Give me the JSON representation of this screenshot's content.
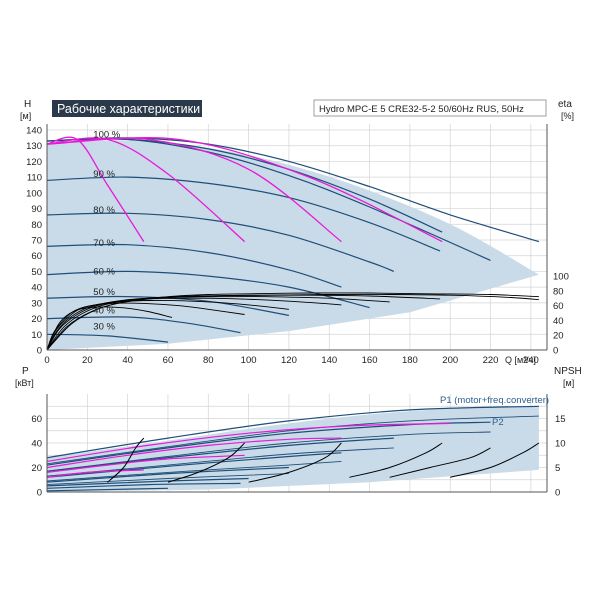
{
  "colors": {
    "envelope": "#c9dbe8",
    "curve_blue": "#1f4e79",
    "curve_magenta": "#e81ad8",
    "curve_black": "#000000",
    "grid": "#d4d4d4",
    "title_bg": "#2b3a4a",
    "title_text": "#ffffff",
    "axis_text": "#222222",
    "label_blue": "#2f5f8f"
  },
  "chart_data": [
    {
      "id": "qh",
      "type": "line",
      "title": "Рабочие характеристики",
      "product_label": "Hydro MPC-E 5 CRE32-5-2 50/60Hz RUS, 50Hz",
      "ylabel": "H",
      "yunit": "[м]",
      "y2label": "eta",
      "y2unit": "[%]",
      "xlabel": "Q [м³/ч]",
      "xlim": [
        0,
        248
      ],
      "ylim": [
        0,
        150
      ],
      "y2lim": [
        0,
        100
      ],
      "xticks": [
        0,
        20,
        40,
        60,
        80,
        100,
        120,
        140,
        160,
        180,
        200,
        220,
        240
      ],
      "yticks": [
        0,
        10,
        20,
        30,
        40,
        50,
        60,
        70,
        80,
        90,
        100,
        110,
        120,
        130,
        140
      ],
      "y2ticks": [
        0,
        20,
        40,
        60,
        80,
        100
      ],
      "grid": true,
      "speed_labels": [
        {
          "text": "100 %",
          "q": 18,
          "h": 137
        },
        {
          "text": "90 %",
          "q": 18,
          "h": 112
        },
        {
          "text": "80 %",
          "q": 18,
          "h": 89
        },
        {
          "text": "70 %",
          "q": 18,
          "h": 68
        },
        {
          "text": "60 %",
          "q": 18,
          "h": 50
        },
        {
          "text": "50 %",
          "q": 18,
          "h": 37
        },
        {
          "text": "40 %",
          "q": 18,
          "h": 25
        },
        {
          "text": "30 %",
          "q": 18,
          "h": 15
        }
      ],
      "envelope_top": [
        [
          0,
          132
        ],
        [
          50,
          133
        ],
        [
          100,
          124
        ],
        [
          150,
          106
        ],
        [
          200,
          80
        ],
        [
          244,
          48
        ]
      ],
      "envelope_bottom": [
        [
          0,
          0
        ],
        [
          60,
          4
        ],
        [
          120,
          12
        ],
        [
          180,
          24
        ],
        [
          244,
          48
        ]
      ],
      "qh_curves": [
        {
          "speed": 100,
          "q": [
            0,
            40,
            80,
            120,
            160,
            200,
            244
          ],
          "h": [
            133,
            135,
            131,
            120,
            104,
            86,
            69
          ]
        },
        {
          "speed": 100,
          "q": [
            0,
            40,
            80,
            120,
            160,
            196
          ],
          "h": [
            133,
            134,
            128,
            115,
            96,
            75
          ]
        },
        {
          "speed": 100,
          "q": [
            0,
            40,
            80,
            120,
            160,
            220
          ],
          "h": [
            133,
            134,
            126,
            111,
            91,
            57
          ]
        },
        {
          "speed": 90,
          "q": [
            0,
            40,
            80,
            120,
            160,
            195
          ],
          "h": [
            108,
            110,
            106,
            97,
            81,
            63
          ]
        },
        {
          "speed": 80,
          "q": [
            0,
            40,
            80,
            120,
            160,
            172
          ],
          "h": [
            86,
            87,
            83,
            73,
            56,
            50
          ]
        },
        {
          "speed": 70,
          "q": [
            0,
            40,
            80,
            120,
            146
          ],
          "h": [
            66,
            67,
            62,
            51,
            40
          ]
        },
        {
          "speed": 60,
          "q": [
            0,
            40,
            80,
            120,
            160
          ],
          "h": [
            48,
            50,
            47,
            40,
            27
          ]
        },
        {
          "speed": 50,
          "q": [
            0,
            40,
            80,
            120
          ],
          "h": [
            33,
            34,
            31,
            22
          ]
        },
        {
          "speed": 40,
          "q": [
            0,
            40,
            70,
            96
          ],
          "h": [
            20,
            21,
            17,
            11
          ]
        },
        {
          "speed": 30,
          "q": [
            0,
            30,
            60
          ],
          "h": [
            10,
            9,
            5
          ]
        }
      ],
      "magenta_curves": [
        {
          "q": [
            0,
            15,
            30,
            48
          ],
          "h": [
            131,
            134,
            105,
            69
          ]
        },
        {
          "q": [
            0,
            30,
            60,
            98
          ],
          "h": [
            131,
            134,
            112,
            69
          ]
        },
        {
          "q": [
            0,
            50,
            100,
            146
          ],
          "h": [
            131,
            134,
            115,
            69
          ]
        },
        {
          "q": [
            0,
            65,
            130,
            196
          ],
          "h": [
            131,
            134,
            110,
            69
          ]
        }
      ],
      "eta_curves": [
        {
          "q": [
            0,
            12,
            25,
            40,
            60,
            80,
            100,
            130,
            160,
            190,
            220,
            244
          ],
          "eta": [
            0,
            35,
            55,
            66,
            72,
            75,
            76,
            77,
            77,
            76,
            75,
            72
          ]
        },
        {
          "q": [
            0,
            10,
            22,
            35,
            55,
            80,
            110,
            140,
            170,
            200,
            230,
            244
          ],
          "eta": [
            0,
            32,
            52,
            63,
            70,
            73,
            74,
            75,
            75,
            74,
            71,
            68
          ]
        },
        {
          "q": [
            0,
            8,
            18,
            30,
            50,
            75,
            100,
            130,
            160,
            195
          ],
          "eta": [
            0,
            30,
            50,
            62,
            70,
            73,
            74,
            74,
            73,
            69
          ]
        },
        {
          "q": [
            0,
            6,
            15,
            25,
            40,
            60,
            85,
            110,
            140,
            170
          ],
          "eta": [
            0,
            28,
            48,
            60,
            68,
            71,
            72,
            72,
            70,
            65
          ]
        },
        {
          "q": [
            0,
            5,
            12,
            20,
            32,
            50,
            70,
            95,
            120,
            146
          ],
          "eta": [
            0,
            26,
            45,
            57,
            65,
            69,
            70,
            69,
            66,
            61
          ]
        },
        {
          "q": [
            0,
            4,
            10,
            16,
            26,
            40,
            58,
            80,
            100,
            120
          ],
          "eta": [
            0,
            25,
            43,
            55,
            62,
            66,
            67,
            65,
            61,
            55
          ]
        },
        {
          "q": [
            0,
            3,
            8,
            13,
            20,
            32,
            48,
            65,
            80,
            98
          ],
          "eta": [
            0,
            22,
            40,
            52,
            59,
            63,
            63,
            60,
            55,
            48
          ]
        },
        {
          "q": [
            0,
            3,
            6,
            10,
            16,
            26,
            38,
            50,
            62
          ],
          "eta": [
            0,
            20,
            36,
            47,
            55,
            58,
            57,
            52,
            44
          ]
        }
      ]
    },
    {
      "id": "qp",
      "type": "line",
      "ylabel": "P",
      "yunit": "[кВт]",
      "y2label": "NPSH",
      "y2unit": "[м]",
      "xlim": [
        0,
        248
      ],
      "ylim": [
        0,
        80
      ],
      "y2lim": [
        0,
        20
      ],
      "yticks": [
        0,
        20,
        40,
        60
      ],
      "y2ticks": [
        0,
        5,
        10,
        15
      ],
      "grid": true,
      "series_labels": [
        "P1 (motor+freq.converter)",
        "P2"
      ],
      "envelope_top": [
        [
          0,
          28
        ],
        [
          60,
          42
        ],
        [
          120,
          56
        ],
        [
          180,
          66
        ],
        [
          244,
          70
        ]
      ],
      "envelope_bottom": [
        [
          0,
          0
        ],
        [
          80,
          2
        ],
        [
          160,
          8
        ],
        [
          244,
          18
        ]
      ],
      "p1_curves": [
        {
          "q": [
            0,
            60,
            120,
            180,
            244
          ],
          "p": [
            28,
            44,
            58,
            67,
            70
          ]
        },
        {
          "q": [
            0,
            60,
            120,
            180,
            220
          ],
          "p": [
            22,
            36,
            48,
            55,
            57
          ]
        },
        {
          "q": [
            0,
            60,
            120,
            172
          ],
          "p": [
            17,
            28,
            38,
            44
          ]
        },
        {
          "q": [
            0,
            60,
            120,
            146
          ],
          "p": [
            12,
            21,
            29,
            32
          ]
        },
        {
          "q": [
            0,
            60,
            120
          ],
          "p": [
            8,
            15,
            20
          ]
        },
        {
          "q": [
            0,
            60,
            100
          ],
          "p": [
            5,
            9,
            11
          ]
        },
        {
          "q": [
            0,
            50,
            96
          ],
          "p": [
            3,
            6,
            7
          ]
        },
        {
          "q": [
            0,
            60
          ],
          "p": [
            1,
            3
          ]
        }
      ],
      "p2_curves": [
        {
          "q": [
            0,
            60,
            120,
            180,
            244
          ],
          "p": [
            23,
            37,
            50,
            58,
            62
          ]
        },
        {
          "q": [
            0,
            60,
            120,
            180,
            220
          ],
          "p": [
            17,
            29,
            40,
            47,
            49
          ]
        },
        {
          "q": [
            0,
            60,
            120,
            172
          ],
          "p": [
            13,
            22,
            31,
            36
          ]
        },
        {
          "q": [
            0,
            60,
            120,
            146
          ],
          "p": [
            9,
            16,
            22,
            25
          ]
        },
        {
          "q": [
            0,
            60,
            120
          ],
          "p": [
            6,
            11,
            15
          ]
        }
      ],
      "magenta_curves": [
        {
          "q": [
            0,
            50,
            100,
            150,
            200
          ],
          "p": [
            25,
            38,
            48,
            54,
            56
          ]
        },
        {
          "q": [
            0,
            40,
            80,
            120,
            146
          ],
          "p": [
            20,
            30,
            38,
            43,
            44
          ]
        },
        {
          "q": [
            0,
            30,
            60,
            98
          ],
          "p": [
            16,
            22,
            27,
            30
          ]
        },
        {
          "q": [
            0,
            20,
            48
          ],
          "p": [
            12,
            16,
            18
          ]
        }
      ],
      "npsh_curves": [
        {
          "q": [
            30,
            38,
            44,
            48
          ],
          "npsh": [
            2,
            5,
            9,
            11
          ]
        },
        {
          "q": [
            60,
            75,
            90,
            98
          ],
          "npsh": [
            2,
            4,
            7,
            10
          ]
        },
        {
          "q": [
            100,
            120,
            138,
            146
          ],
          "npsh": [
            2,
            4,
            7,
            10
          ]
        },
        {
          "q": [
            150,
            170,
            188,
            196
          ],
          "npsh": [
            3,
            5,
            8,
            10
          ]
        },
        {
          "q": [
            170,
            190,
            210,
            220
          ],
          "npsh": [
            3,
            5,
            7,
            9
          ]
        },
        {
          "q": [
            200,
            220,
            236,
            244
          ],
          "npsh": [
            3,
            5,
            8,
            10
          ]
        }
      ]
    }
  ]
}
